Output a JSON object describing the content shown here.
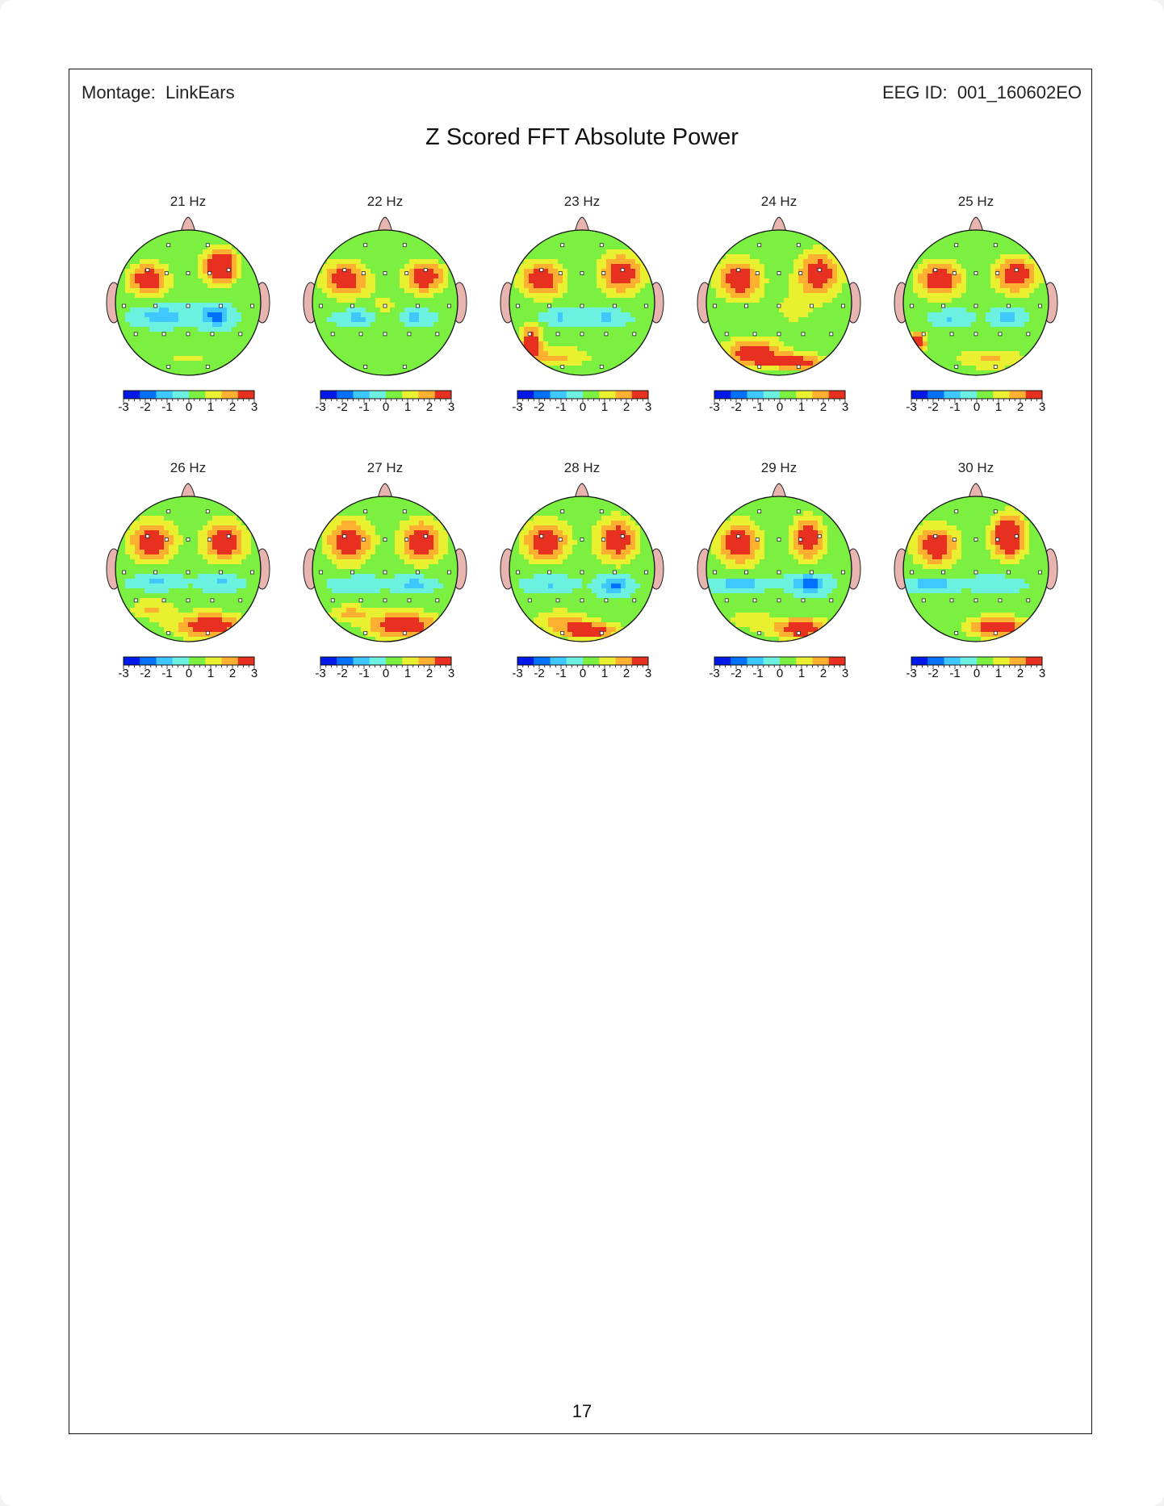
{
  "header": {
    "montage_label": "Montage:",
    "montage_value": "LinkEars",
    "eeg_id_label": "EEG ID:",
    "eeg_id_value": "001_160602EO"
  },
  "title": "Z Scored FFT Absolute Power",
  "page_number": "17",
  "colorbar": {
    "ticks": [
      "-3",
      "-2",
      "-1",
      "0",
      "1",
      "2",
      "3"
    ],
    "colors": [
      "#0018e8",
      "#0070ff",
      "#3ec8ff",
      "#6cf0e0",
      "#7cf040",
      "#e8f030",
      "#ffb030",
      "#e83020"
    ]
  },
  "maps": [
    {
      "label": "21 Hz",
      "blobs": [
        [
          -0.55,
          -0.32,
          0.28,
          0.22,
          3
        ],
        [
          0.45,
          -0.5,
          0.18,
          0.18,
          3
        ],
        [
          0.45,
          -0.5,
          0.3,
          0.3,
          1.5
        ],
        [
          -0.35,
          0.18,
          0.32,
          0.12,
          -1.5
        ],
        [
          0.38,
          0.18,
          0.2,
          0.14,
          -2
        ],
        [
          0.0,
          0.78,
          0.4,
          0.1,
          0.8
        ]
      ]
    },
    {
      "label": "22 Hz",
      "blobs": [
        [
          -0.55,
          -0.32,
          0.3,
          0.25,
          3
        ],
        [
          0.55,
          -0.35,
          0.28,
          0.22,
          3
        ],
        [
          -0.35,
          0.2,
          0.28,
          0.1,
          -1.2
        ],
        [
          0.38,
          0.2,
          0.22,
          0.1,
          -1.2
        ],
        [
          0.0,
          0.1,
          0.25,
          0.35,
          0.8
        ]
      ]
    },
    {
      "label": "23 Hz",
      "blobs": [
        [
          -0.55,
          -0.32,
          0.3,
          0.25,
          3
        ],
        [
          0.55,
          -0.4,
          0.3,
          0.28,
          3
        ],
        [
          -0.7,
          0.55,
          0.15,
          0.25,
          3
        ],
        [
          -0.3,
          0.75,
          0.45,
          0.15,
          1.5
        ],
        [
          -0.3,
          0.2,
          0.3,
          0.1,
          -1
        ],
        [
          0.35,
          0.2,
          0.25,
          0.1,
          -1
        ]
      ]
    },
    {
      "label": "24 Hz",
      "blobs": [
        [
          -0.55,
          -0.32,
          0.3,
          0.28,
          3
        ],
        [
          0.55,
          -0.4,
          0.3,
          0.3,
          3
        ],
        [
          -0.35,
          0.7,
          0.4,
          0.2,
          3
        ],
        [
          0.3,
          0.82,
          0.4,
          0.12,
          2.5
        ],
        [
          0.2,
          0.1,
          0.4,
          0.3,
          0.8
        ]
      ]
    },
    {
      "label": "25 Hz",
      "blobs": [
        [
          -0.5,
          -0.32,
          0.32,
          0.25,
          3
        ],
        [
          0.55,
          -0.38,
          0.3,
          0.25,
          3
        ],
        [
          -0.8,
          0.55,
          0.12,
          0.15,
          3
        ],
        [
          0.2,
          0.78,
          0.5,
          0.15,
          1.5
        ],
        [
          -0.35,
          0.2,
          0.25,
          0.1,
          -1
        ],
        [
          0.45,
          0.2,
          0.2,
          0.1,
          -1.2
        ]
      ]
    },
    {
      "label": "26 Hz",
      "blobs": [
        [
          -0.5,
          -0.38,
          0.32,
          0.28,
          3
        ],
        [
          0.5,
          -0.38,
          0.3,
          0.28,
          3
        ],
        [
          0.3,
          0.78,
          0.5,
          0.18,
          3
        ],
        [
          -0.5,
          0.55,
          0.3,
          0.15,
          1.5
        ],
        [
          -0.45,
          0.18,
          0.3,
          0.1,
          -1
        ],
        [
          0.45,
          0.18,
          0.25,
          0.1,
          -1
        ]
      ]
    },
    {
      "label": "27 Hz",
      "blobs": [
        [
          -0.5,
          -0.38,
          0.32,
          0.3,
          3
        ],
        [
          0.5,
          -0.38,
          0.3,
          0.3,
          3
        ],
        [
          0.25,
          0.78,
          0.5,
          0.2,
          3
        ],
        [
          -0.5,
          0.6,
          0.3,
          0.12,
          1.5
        ],
        [
          -0.4,
          0.2,
          0.3,
          0.1,
          -1
        ],
        [
          0.4,
          0.2,
          0.25,
          0.1,
          -1.2
        ]
      ]
    },
    {
      "label": "28 Hz",
      "blobs": [
        [
          -0.5,
          -0.38,
          0.32,
          0.28,
          3
        ],
        [
          0.48,
          -0.4,
          0.28,
          0.3,
          3
        ],
        [
          0.1,
          0.85,
          0.4,
          0.12,
          3
        ],
        [
          -0.3,
          0.7,
          0.4,
          0.15,
          1.5
        ],
        [
          -0.45,
          0.2,
          0.3,
          0.1,
          -1
        ],
        [
          0.45,
          0.22,
          0.2,
          0.12,
          -1.8
        ]
      ]
    },
    {
      "label": "29 Hz",
      "blobs": [
        [
          -0.55,
          -0.35,
          0.3,
          0.3,
          3
        ],
        [
          0.4,
          -0.42,
          0.22,
          0.3,
          3
        ],
        [
          0.3,
          0.82,
          0.4,
          0.15,
          3
        ],
        [
          -0.55,
          0.2,
          0.35,
          0.08,
          -1.5
        ],
        [
          0.42,
          0.2,
          0.22,
          0.12,
          -2.2
        ],
        [
          -0.4,
          0.7,
          0.3,
          0.15,
          1.2
        ]
      ]
    },
    {
      "label": "30 Hz",
      "blobs": [
        [
          -0.55,
          -0.32,
          0.3,
          0.28,
          3
        ],
        [
          0.45,
          -0.45,
          0.18,
          0.25,
          3
        ],
        [
          0.45,
          -0.45,
          0.3,
          0.35,
          1.5
        ],
        [
          0.3,
          0.8,
          0.4,
          0.15,
          3
        ],
        [
          -0.6,
          0.2,
          0.35,
          0.08,
          -1.5
        ],
        [
          0.3,
          0.2,
          0.3,
          0.1,
          -0.8
        ]
      ]
    }
  ]
}
